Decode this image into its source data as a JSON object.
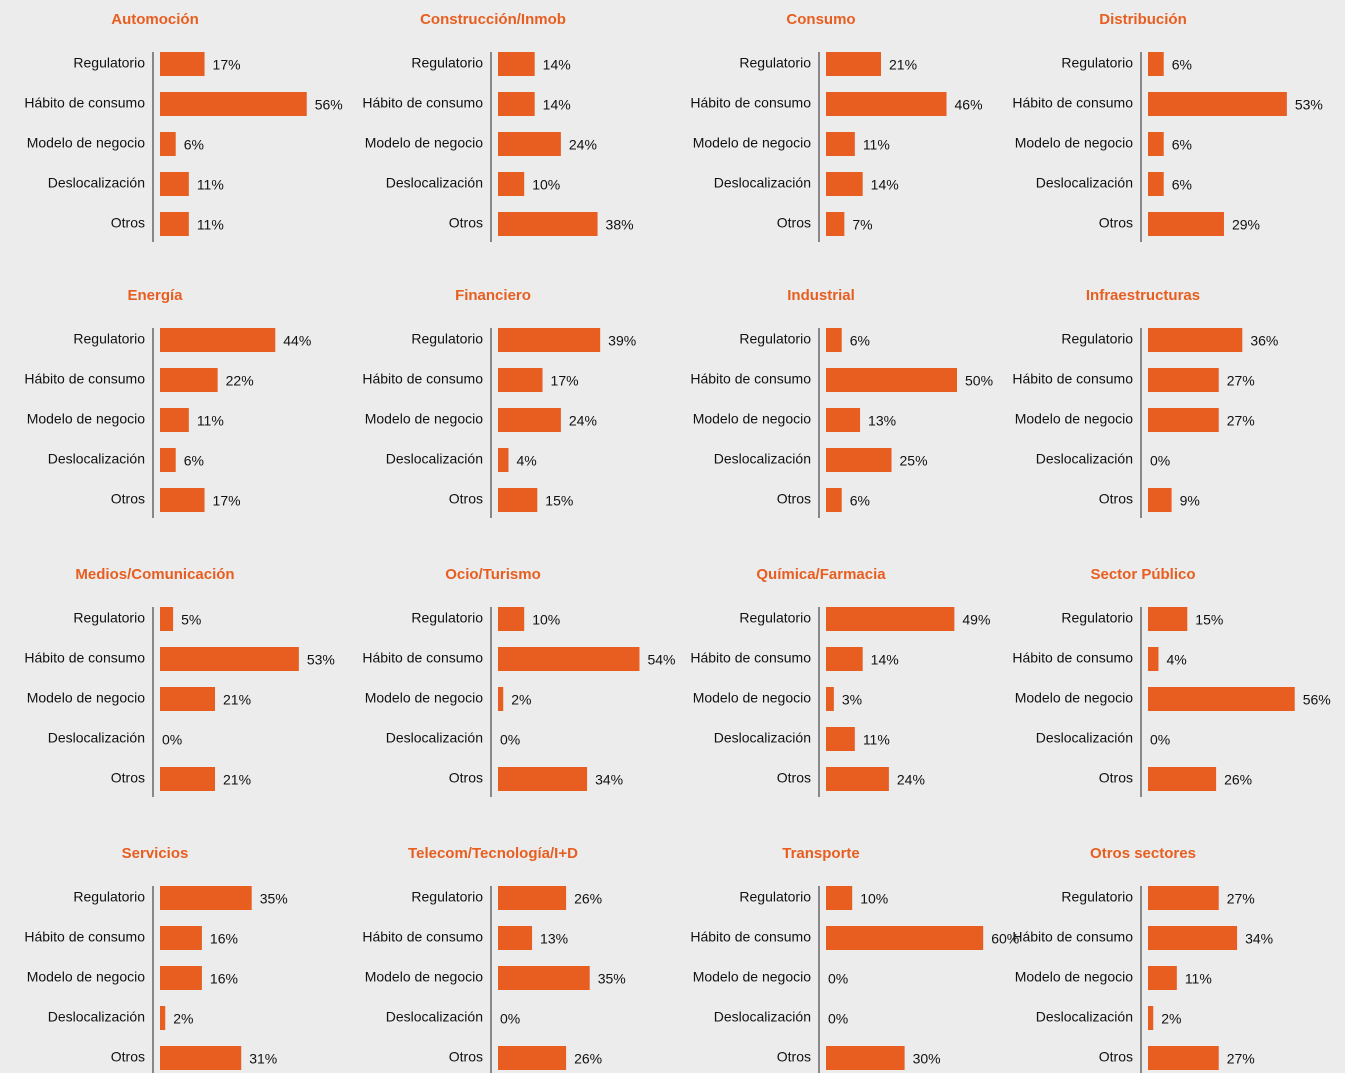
{
  "chart_data": [
    {
      "type": "bar",
      "orientation": "horizontal",
      "title": "Automoción",
      "color": "#e85e20",
      "categories": [
        "Regulatorio",
        "Hábito de consumo",
        "Modelo de negocio",
        "Deslocalización",
        "Otros"
      ],
      "values": [
        17,
        56,
        6,
        11,
        11
      ],
      "value_labels": [
        "17%",
        "56%",
        "6%",
        "11%",
        "11%"
      ]
    },
    {
      "type": "bar",
      "orientation": "horizontal",
      "title": "Construcción/Inmob",
      "color": "#e85e20",
      "categories": [
        "Regulatorio",
        "Hábito de consumo",
        "Modelo de negocio",
        "Deslocalización",
        "Otros"
      ],
      "values": [
        14,
        14,
        24,
        10,
        38
      ],
      "value_labels": [
        "14%",
        "14%",
        "24%",
        "10%",
        "38%"
      ]
    },
    {
      "type": "bar",
      "orientation": "horizontal",
      "title": "Consumo",
      "color": "#e85e20",
      "categories": [
        "Regulatorio",
        "Hábito de consumo",
        "Modelo de negocio",
        "Deslocalización",
        "Otros"
      ],
      "values": [
        21,
        46,
        11,
        14,
        7
      ],
      "value_labels": [
        "21%",
        "46%",
        "11%",
        "14%",
        "7%"
      ]
    },
    {
      "type": "bar",
      "orientation": "horizontal",
      "title": "Distribución",
      "color": "#e85e20",
      "categories": [
        "Regulatorio",
        "Hábito de consumo",
        "Modelo de negocio",
        "Deslocalización",
        "Otros"
      ],
      "values": [
        6,
        53,
        6,
        6,
        29
      ],
      "value_labels": [
        "6%",
        "53%",
        "6%",
        "6%",
        "29%"
      ]
    },
    {
      "type": "bar",
      "orientation": "horizontal",
      "title": "Energía",
      "color": "#e85e20",
      "categories": [
        "Regulatorio",
        "Hábito de consumo",
        "Modelo de negocio",
        "Deslocalización",
        "Otros"
      ],
      "values": [
        44,
        22,
        11,
        6,
        17
      ],
      "value_labels": [
        "44%",
        "22%",
        "11%",
        "6%",
        "17%"
      ]
    },
    {
      "type": "bar",
      "orientation": "horizontal",
      "title": "Financiero",
      "color": "#e85e20",
      "categories": [
        "Regulatorio",
        "Hábito de consumo",
        "Modelo de negocio",
        "Deslocalización",
        "Otros"
      ],
      "values": [
        39,
        17,
        24,
        4,
        15
      ],
      "value_labels": [
        "39%",
        "17%",
        "24%",
        "4%",
        "15%"
      ]
    },
    {
      "type": "bar",
      "orientation": "horizontal",
      "title": "Industrial",
      "color": "#e85e20",
      "categories": [
        "Regulatorio",
        "Hábito de consumo",
        "Modelo de negocio",
        "Deslocalización",
        "Otros"
      ],
      "values": [
        6,
        50,
        13,
        25,
        6
      ],
      "value_labels": [
        "6%",
        "50%",
        "13%",
        "25%",
        "6%"
      ]
    },
    {
      "type": "bar",
      "orientation": "horizontal",
      "title": "Infraestructuras",
      "color": "#e85e20",
      "categories": [
        "Regulatorio",
        "Hábito de consumo",
        "Modelo de negocio",
        "Deslocalización",
        "Otros"
      ],
      "values": [
        36,
        27,
        27,
        0,
        9
      ],
      "value_labels": [
        "36%",
        "27%",
        "27%",
        "0%",
        "9%"
      ]
    },
    {
      "type": "bar",
      "orientation": "horizontal",
      "title": "Medios/Comunicación",
      "color": "#e85e20",
      "categories": [
        "Regulatorio",
        "Hábito de consumo",
        "Modelo de negocio",
        "Deslocalización",
        "Otros"
      ],
      "values": [
        5,
        53,
        21,
        0,
        21
      ],
      "value_labels": [
        "5%",
        "53%",
        "21%",
        "0%",
        "21%"
      ]
    },
    {
      "type": "bar",
      "orientation": "horizontal",
      "title": "Ocio/Turismo",
      "color": "#e85e20",
      "categories": [
        "Regulatorio",
        "Hábito de consumo",
        "Modelo de negocio",
        "Deslocalización",
        "Otros"
      ],
      "values": [
        10,
        54,
        2,
        0,
        34
      ],
      "value_labels": [
        "10%",
        "54%",
        "2%",
        "0%",
        "34%"
      ]
    },
    {
      "type": "bar",
      "orientation": "horizontal",
      "title": "Química/Farmacia",
      "color": "#e85e20",
      "categories": [
        "Regulatorio",
        "Hábito de consumo",
        "Modelo de negocio",
        "Deslocalización",
        "Otros"
      ],
      "values": [
        49,
        14,
        3,
        11,
        24
      ],
      "value_labels": [
        "49%",
        "14%",
        "3%",
        "11%",
        "24%"
      ]
    },
    {
      "type": "bar",
      "orientation": "horizontal",
      "title": "Sector Público",
      "color": "#e85e20",
      "categories": [
        "Regulatorio",
        "Hábito de consumo",
        "Modelo de negocio",
        "Deslocalización",
        "Otros"
      ],
      "values": [
        15,
        4,
        56,
        0,
        26
      ],
      "value_labels": [
        "15%",
        "4%",
        "56%",
        "0%",
        "26%"
      ]
    },
    {
      "type": "bar",
      "orientation": "horizontal",
      "title": "Servicios",
      "color": "#e85e20",
      "categories": [
        "Regulatorio",
        "Hábito de consumo",
        "Modelo de negocio",
        "Deslocalización",
        "Otros"
      ],
      "values": [
        35,
        16,
        16,
        2,
        31
      ],
      "value_labels": [
        "35%",
        "16%",
        "16%",
        "2%",
        "31%"
      ]
    },
    {
      "type": "bar",
      "orientation": "horizontal",
      "title": "Telecom/Tecnología/I+D",
      "color": "#e85e20",
      "categories": [
        "Regulatorio",
        "Hábito de consumo",
        "Modelo de negocio",
        "Deslocalización",
        "Otros"
      ],
      "values": [
        26,
        13,
        35,
        0,
        26
      ],
      "value_labels": [
        "26%",
        "13%",
        "35%",
        "0%",
        "26%"
      ]
    },
    {
      "type": "bar",
      "orientation": "horizontal",
      "title": "Transporte",
      "color": "#e85e20",
      "categories": [
        "Regulatorio",
        "Hábito de consumo",
        "Modelo de negocio",
        "Deslocalización",
        "Otros"
      ],
      "values": [
        10,
        60,
        0,
        0,
        30
      ],
      "value_labels": [
        "10%",
        "60%",
        "0%",
        "0%",
        "30%"
      ]
    },
    {
      "type": "bar",
      "orientation": "horizontal",
      "title": "Otros sectores",
      "color": "#e85e20",
      "categories": [
        "Regulatorio",
        "Hábito de consumo",
        "Modelo de negocio",
        "Deslocalización",
        "Otros"
      ],
      "values": [
        27,
        34,
        11,
        2,
        27
      ],
      "value_labels": [
        "27%",
        "34%",
        "11%",
        "2%",
        "27%"
      ]
    }
  ]
}
